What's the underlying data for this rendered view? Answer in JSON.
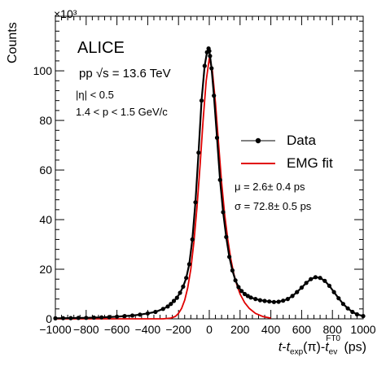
{
  "chart_data": {
    "type": "scatter",
    "xlabel_parts": {
      "t": "t",
      "dash1": "-",
      "texp": "t",
      "texp_sub": "exp",
      "pi": "(π)",
      "dash2": "-",
      "tev": "t",
      "tev_sub": "ev",
      "tev_sup": "FT0",
      "unit": " (ps)"
    },
    "ylabel": "Counts",
    "yexponent": "×10³",
    "xlim": [
      -1000,
      1000
    ],
    "ylim": [
      0,
      122
    ],
    "xticks": [
      -1000,
      -800,
      -600,
      -400,
      -200,
      0,
      200,
      400,
      600,
      800,
      1000
    ],
    "yticks": [
      0,
      20,
      40,
      60,
      80,
      100
    ],
    "annotations": {
      "experiment": "ALICE",
      "energy": "pp √s = 13.6 TeV",
      "eta_cut": "|η| < 0.5",
      "p_cut": "1.4 < p < 1.5 GeV/c",
      "mu": "μ = 2.6± 0.4 ps",
      "sigma": "σ = 72.8± 0.5 ps"
    },
    "legend": {
      "position": "right",
      "entries": [
        "Data",
        "EMG fit"
      ]
    },
    "series": [
      {
        "name": "Data",
        "style": "markers",
        "color": "#000000",
        "x": [
          -1000,
          -950,
          -900,
          -850,
          -800,
          -750,
          -700,
          -650,
          -600,
          -550,
          -500,
          -450,
          -400,
          -350,
          -300,
          -270,
          -250,
          -230,
          -210,
          -190,
          -170,
          -150,
          -130,
          -110,
          -90,
          -70,
          -50,
          -30,
          -15,
          -5,
          0,
          5,
          15,
          30,
          50,
          70,
          90,
          110,
          130,
          150,
          170,
          190,
          210,
          230,
          250,
          270,
          300,
          330,
          360,
          390,
          420,
          450,
          480,
          510,
          540,
          570,
          600,
          630,
          660,
          690,
          720,
          750,
          780,
          810,
          840,
          870,
          900,
          930,
          960,
          1000
        ],
        "y": [
          0.2,
          0.25,
          0.3,
          0.35,
          0.4,
          0.5,
          0.6,
          0.7,
          0.9,
          1.1,
          1.3,
          1.7,
          2.2,
          2.8,
          4.0,
          5.0,
          6.0,
          7.2,
          8.5,
          10.5,
          13.0,
          16.5,
          22.0,
          32.0,
          47.0,
          67.0,
          88.0,
          102.0,
          107.5,
          109.0,
          108.0,
          106.0,
          101.0,
          90.0,
          73.0,
          56.0,
          43.0,
          33.0,
          25.0,
          19.5,
          15.5,
          12.8,
          11.2,
          10.0,
          9.2,
          8.6,
          8.0,
          7.5,
          7.2,
          7.0,
          6.8,
          6.9,
          7.3,
          8.0,
          9.2,
          10.8,
          12.6,
          14.5,
          16.0,
          16.8,
          16.5,
          15.3,
          13.3,
          10.8,
          8.3,
          6.0,
          4.2,
          2.8,
          1.8,
          1.1
        ]
      },
      {
        "name": "EMG fit",
        "style": "line",
        "color": "#e00000",
        "x": [
          -1000,
          -600,
          -400,
          -300,
          -250,
          -220,
          -200,
          -180,
          -160,
          -140,
          -120,
          -100,
          -80,
          -60,
          -40,
          -20,
          0,
          20,
          40,
          60,
          80,
          100,
          120,
          140,
          160,
          180,
          200,
          230,
          260,
          300,
          350,
          400
        ],
        "y": [
          0,
          0,
          0,
          0,
          0.3,
          1.0,
          2.2,
          4.2,
          7.5,
          12.5,
          20.0,
          31.0,
          45.0,
          62.0,
          80.0,
          96.0,
          105.0,
          100.0,
          87.0,
          71.0,
          55.0,
          42.0,
          32.0,
          24.0,
          18.0,
          13.5,
          10.0,
          6.5,
          4.2,
          2.2,
          0.9,
          0.3
        ]
      }
    ]
  }
}
